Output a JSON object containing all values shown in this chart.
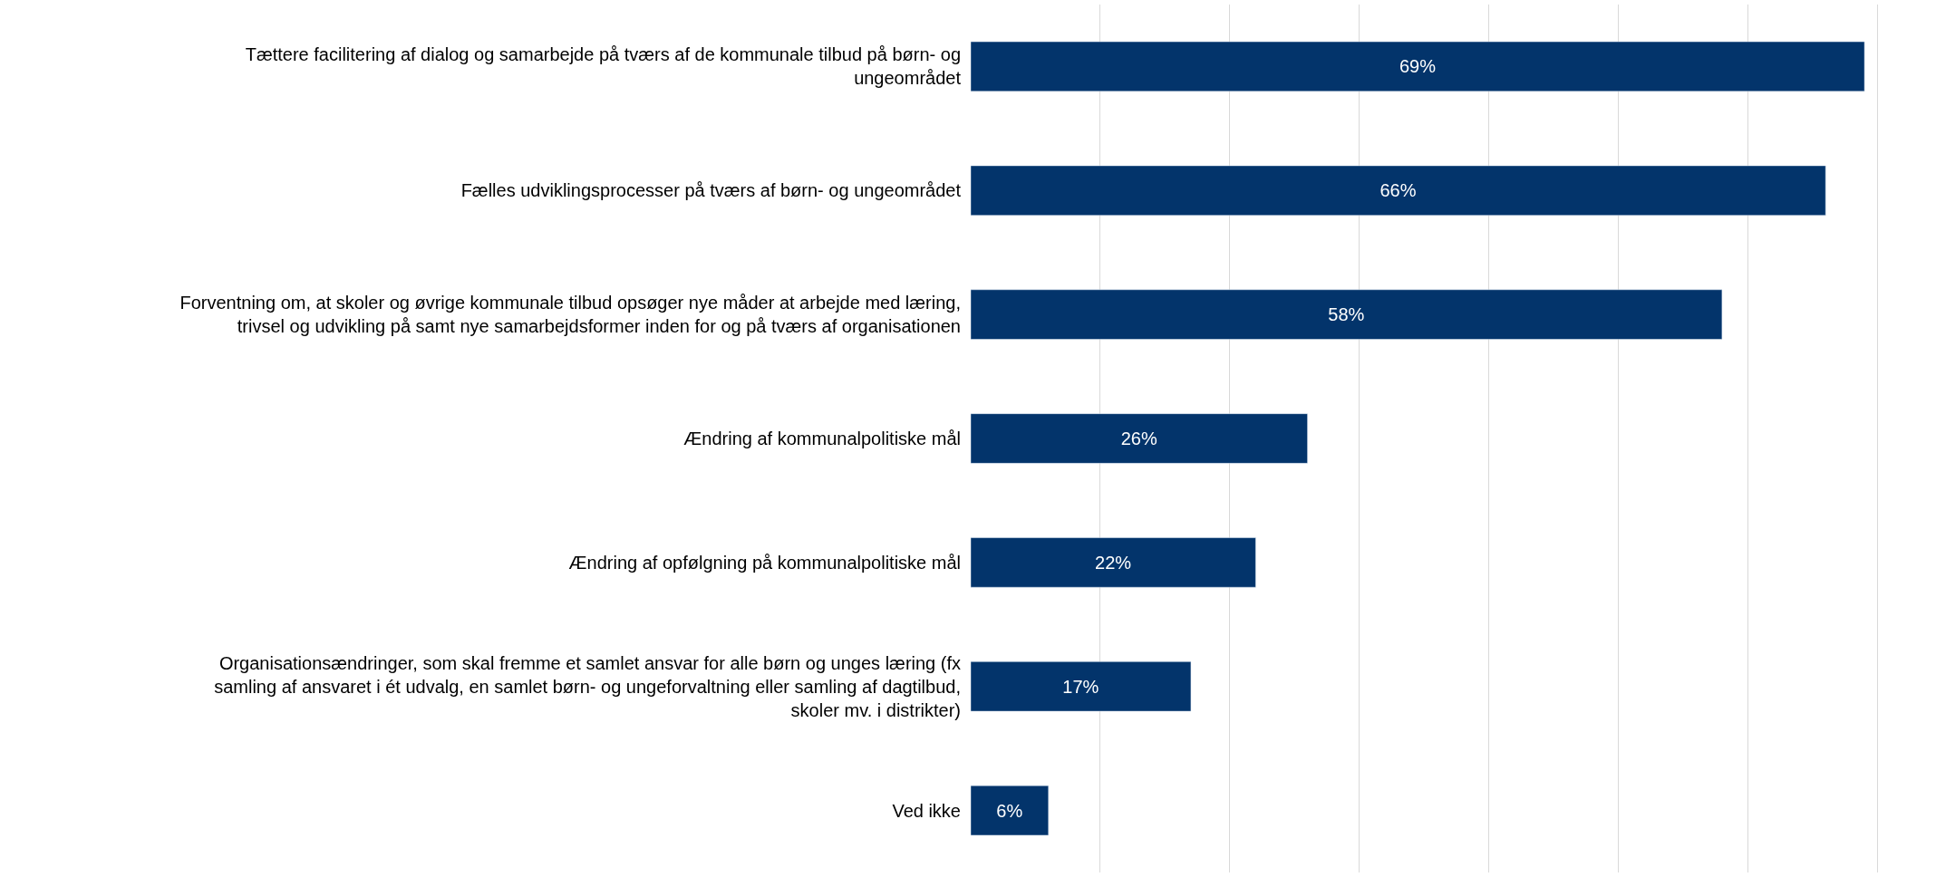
{
  "chart_data": {
    "type": "bar",
    "orientation": "horizontal",
    "categories": [
      "Tættere facilitering af dialog og samarbejde på tværs af de kommunale tilbud på børn- og ungeområdet",
      "Fælles udviklingsprocesser på tværs af børn- og ungeområdet",
      "Forventning om, at skoler og øvrige kommunale tilbud opsøger nye måder at arbejde med læring, trivsel og udvikling på samt nye samarbejdsformer inden for og på tværs af organisationen",
      "Ændring af kommunalpolitiske mål",
      "Ændring af opfølgning på kommunalpolitiske mål",
      "Organisationsændringer, som skal fremme et samlet ansvar for alle børn og unges læring (fx samling af ansvaret i ét udvalg, en samlet børn- og ungeforvaltning eller samling af dagtilbud, skoler mv. i distrikter)",
      "Ved ikke"
    ],
    "values": [
      69,
      66,
      58,
      26,
      22,
      17,
      6
    ],
    "value_labels": [
      "69%",
      "66%",
      "58%",
      "26%",
      "22%",
      "17%",
      "6%"
    ],
    "color": "#03346b",
    "grid": "x",
    "tick_labels": "y"
  }
}
